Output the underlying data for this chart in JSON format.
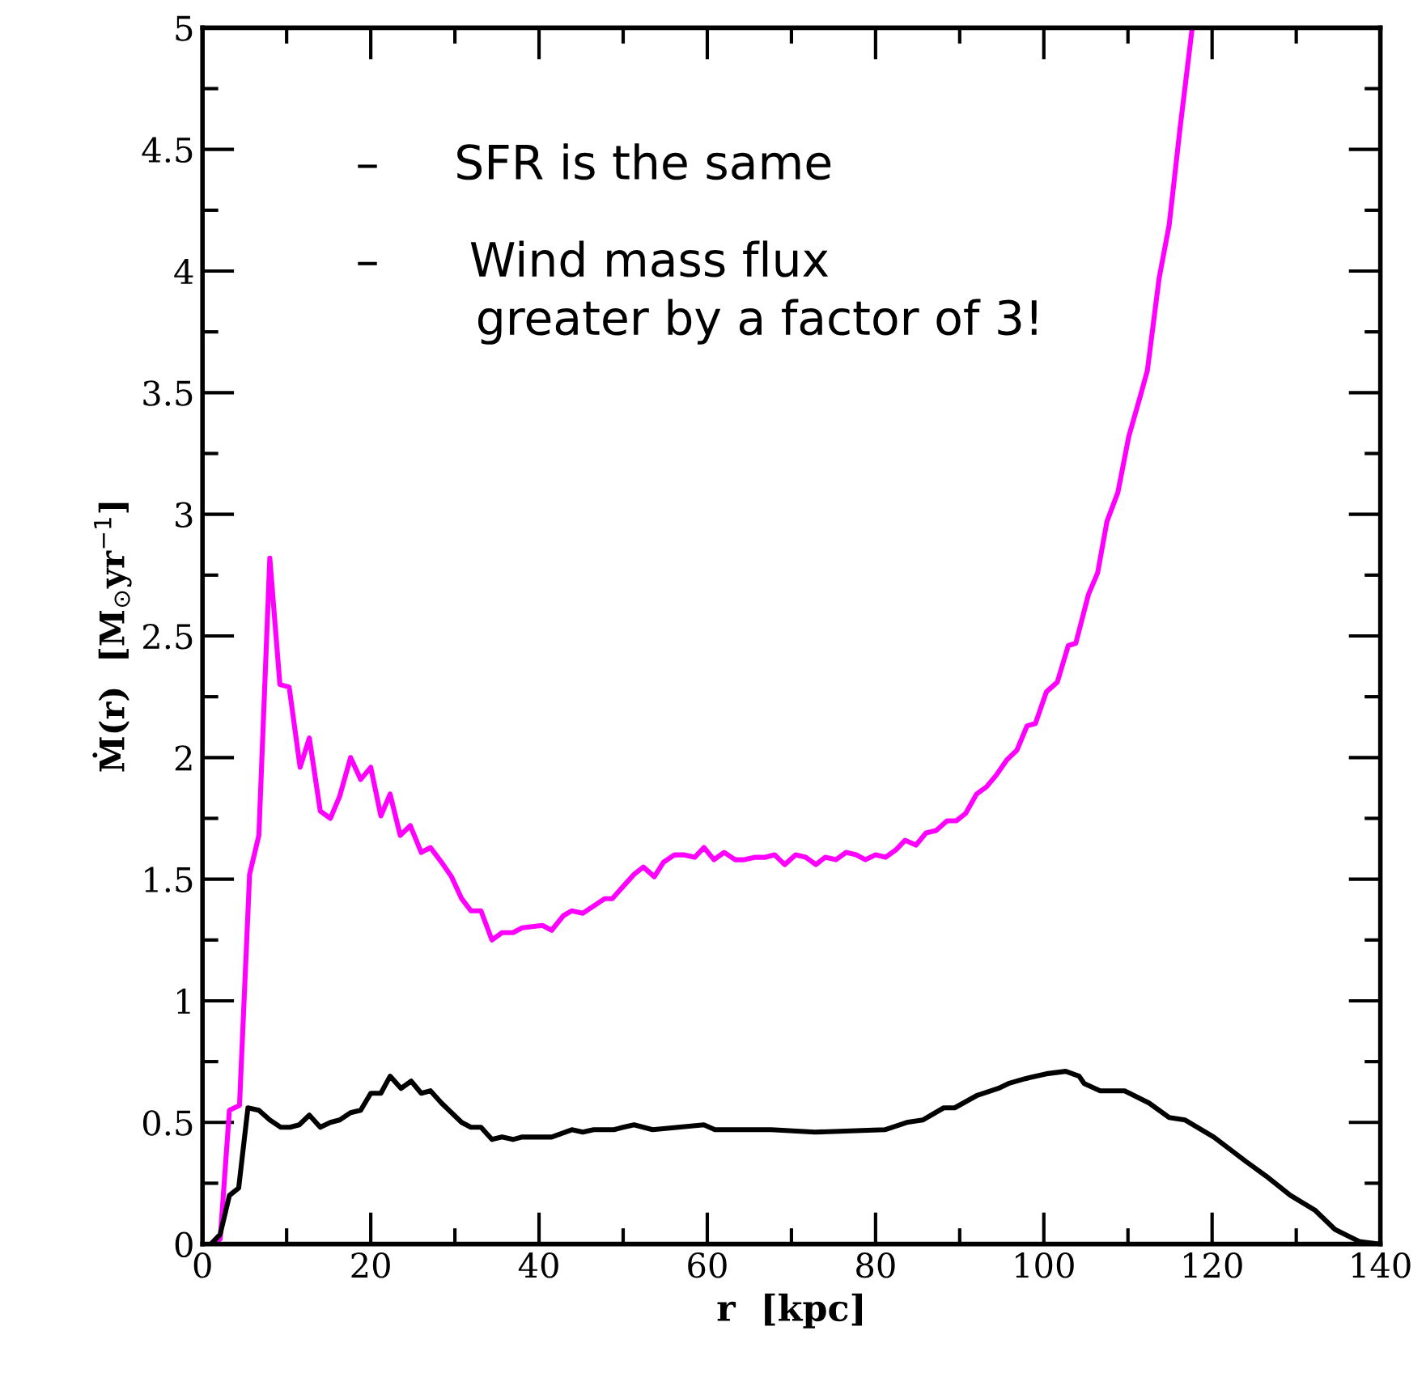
{
  "chart_data": {
    "type": "line",
    "xlabel": "r  [kpc]",
    "ylabel": "Ṁ(r)  [M$_{⊙}$yr$^{−1}$]",
    "xlim": [
      0,
      140
    ],
    "xticks": [
      0,
      20,
      40,
      60,
      80,
      100,
      120,
      140
    ],
    "ylim": [
      0,
      5
    ],
    "yticks": [
      0,
      0.5,
      1,
      1.5,
      2,
      2.5,
      3,
      3.5,
      4,
      4.5,
      5
    ],
    "grid": false,
    "legend": false,
    "marker": "none",
    "line_style": "solid",
    "annotations": [
      "–     SFR is the same",
      "–      Wind mass flux\n        greater by a factor of 3!"
    ],
    "series": [
      {
        "color": "#ff00ff",
        "x": [
          1,
          2.1,
          3.2,
          4.4,
          5.6,
          6.7,
          8.0,
          9.2,
          10.3,
          11.6,
          12.7,
          14.0,
          15.2,
          16.3,
          17.6,
          18.8,
          20.0,
          21.2,
          22.3,
          23.5,
          24.7,
          26.0,
          27.1,
          28.4,
          29.6,
          30.8,
          31.9,
          33.1,
          34.4,
          35.6,
          36.9,
          38.0,
          40.4,
          41.5,
          42.9,
          43.9,
          45.2,
          46.5,
          47.8,
          48.7,
          50.0,
          51.3,
          52.4,
          53.7,
          54.8,
          56.1,
          57.2,
          58.5,
          59.6,
          60.8,
          62.0,
          63.3,
          64.4,
          65.7,
          66.9,
          68.0,
          69.2,
          70.5,
          71.7,
          72.9,
          74.0,
          75.3,
          76.5,
          77.7,
          78.8,
          80.0,
          81.2,
          82.4,
          83.5,
          84.8,
          86.0,
          87.2,
          88.5,
          89.6,
          90.7,
          92.0,
          93.2,
          94.4,
          95.6,
          96.8,
          98.0,
          99.0,
          100.3,
          101.6,
          102.9,
          103.8,
          105.3,
          106.4,
          107.5,
          108.8,
          110.1,
          111.5,
          112.3,
          113.7,
          114.9,
          116.2,
          117.6
        ],
        "values": [
          0,
          0.02,
          0.55,
          0.57,
          1.52,
          1.68,
          2.82,
          2.3,
          2.29,
          1.96,
          2.08,
          1.78,
          1.75,
          1.84,
          2.0,
          1.91,
          1.96,
          1.76,
          1.85,
          1.68,
          1.72,
          1.61,
          1.63,
          1.57,
          1.51,
          1.42,
          1.37,
          1.37,
          1.25,
          1.28,
          1.28,
          1.3,
          1.31,
          1.29,
          1.35,
          1.37,
          1.36,
          1.39,
          1.42,
          1.42,
          1.47,
          1.52,
          1.55,
          1.51,
          1.57,
          1.6,
          1.6,
          1.59,
          1.63,
          1.58,
          1.61,
          1.58,
          1.58,
          1.59,
          1.59,
          1.6,
          1.56,
          1.6,
          1.59,
          1.56,
          1.59,
          1.58,
          1.61,
          1.6,
          1.58,
          1.6,
          1.59,
          1.62,
          1.66,
          1.64,
          1.69,
          1.7,
          1.74,
          1.74,
          1.77,
          1.85,
          1.88,
          1.93,
          1.99,
          2.03,
          2.13,
          2.14,
          2.27,
          2.31,
          2.46,
          2.47,
          2.67,
          2.76,
          2.97,
          3.09,
          3.32,
          3.49,
          3.59,
          3.97,
          4.19,
          4.59,
          4.99
        ]
      },
      {
        "color": "#000000",
        "x": [
          1,
          2.1,
          3.2,
          4.3,
          5.4,
          6.7,
          8.0,
          9.3,
          10.4,
          11.5,
          12.7,
          14.0,
          15.2,
          16.3,
          17.6,
          18.8,
          20.0,
          21.2,
          22.3,
          23.6,
          24.8,
          26.0,
          27.1,
          28.4,
          29.6,
          30.8,
          31.9,
          33.1,
          34.4,
          35.6,
          36.9,
          38.0,
          41.5,
          43.9,
          45.2,
          46.5,
          48.9,
          50.0,
          51.3,
          53.5,
          59.6,
          60.9,
          67.6,
          72.8,
          81.1,
          83.7,
          85.6,
          88.1,
          89.4,
          92.0,
          94.6,
          95.8,
          97.8,
          100.3,
          102.6,
          104.2,
          104.8,
          106.7,
          109.6,
          112.5,
          114.9,
          116.8,
          120.2,
          124.0,
          126.4,
          129.3,
          132.2,
          134.6,
          137.5,
          139.9
        ],
        "values": [
          0,
          0.04,
          0.2,
          0.23,
          0.56,
          0.55,
          0.51,
          0.48,
          0.48,
          0.49,
          0.53,
          0.48,
          0.5,
          0.51,
          0.54,
          0.55,
          0.62,
          0.62,
          0.69,
          0.64,
          0.67,
          0.62,
          0.63,
          0.58,
          0.54,
          0.5,
          0.48,
          0.48,
          0.43,
          0.44,
          0.43,
          0.44,
          0.44,
          0.47,
          0.46,
          0.47,
          0.47,
          0.48,
          0.49,
          0.47,
          0.49,
          0.47,
          0.47,
          0.46,
          0.47,
          0.5,
          0.51,
          0.56,
          0.56,
          0.61,
          0.64,
          0.66,
          0.68,
          0.7,
          0.71,
          0.69,
          0.66,
          0.63,
          0.63,
          0.58,
          0.52,
          0.51,
          0.44,
          0.34,
          0.28,
          0.2,
          0.14,
          0.06,
          0.01,
          0.0
        ]
      }
    ]
  }
}
